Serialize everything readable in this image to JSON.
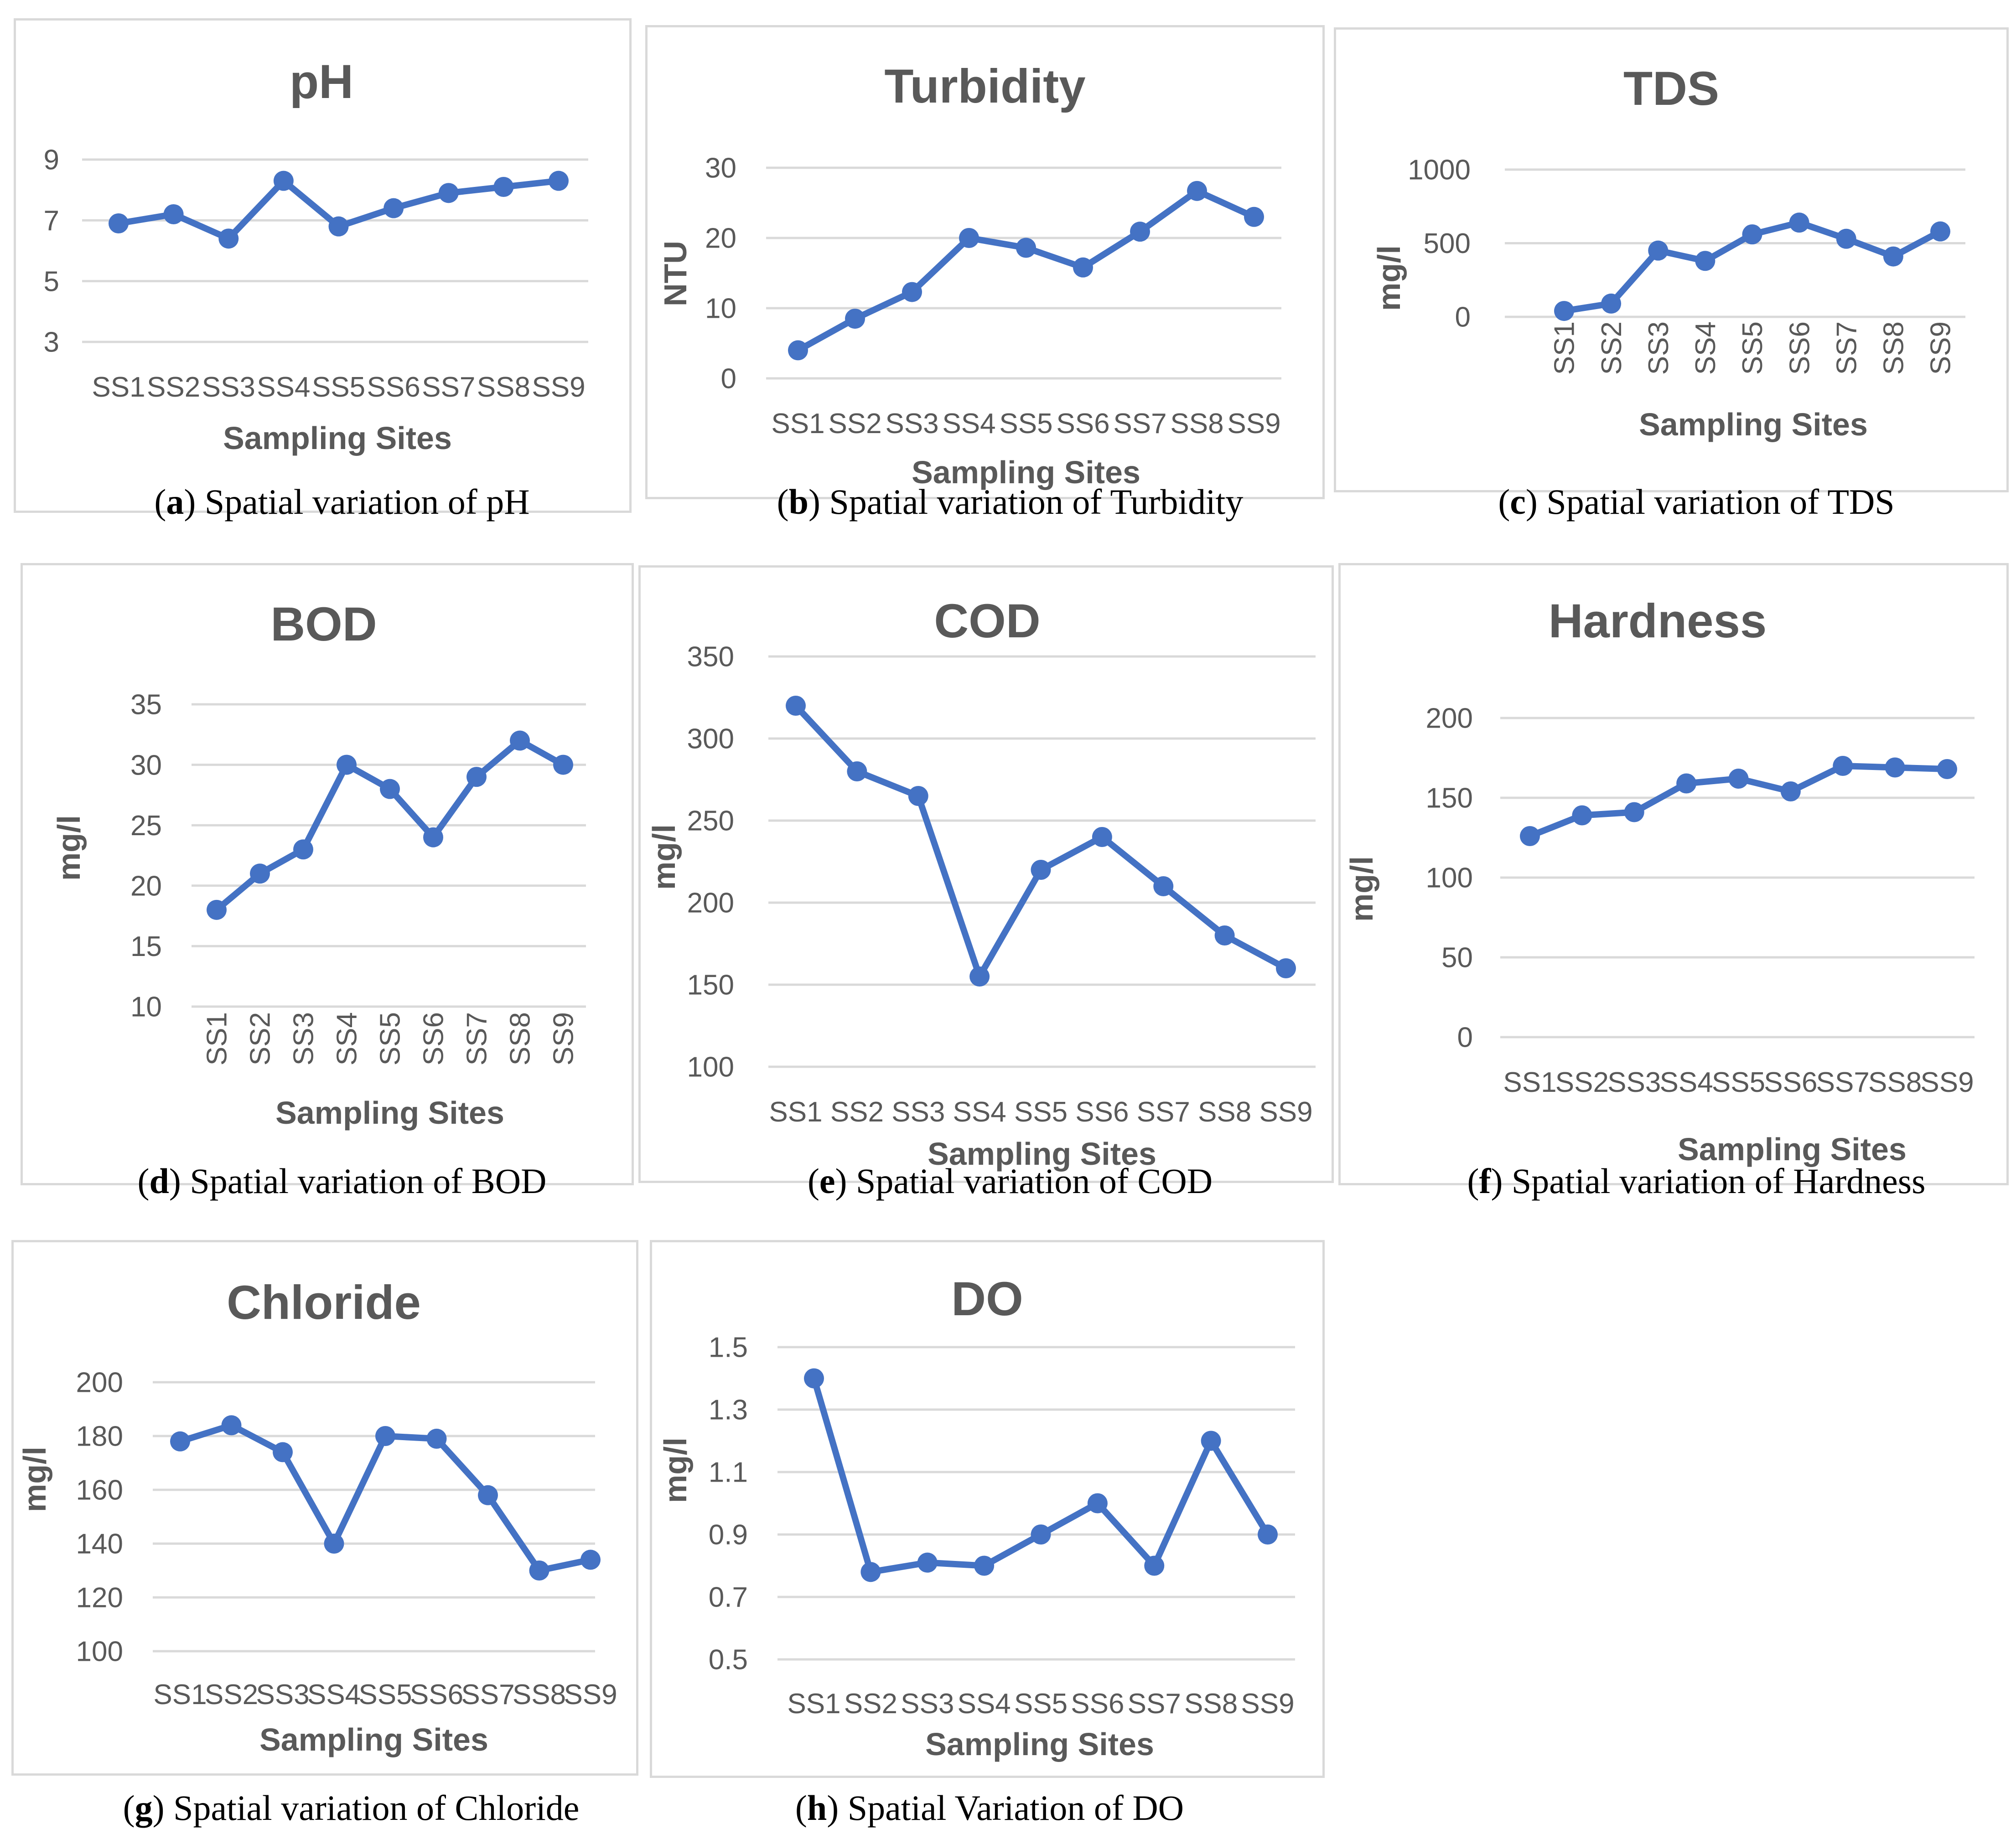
{
  "chart_data": [
    {
      "id": "a",
      "type": "line",
      "title": "pH",
      "categories": [
        "SS1",
        "SS2",
        "SS3",
        "SS4",
        "SS5",
        "SS6",
        "SS7",
        "SS8",
        "SS9"
      ],
      "values": [
        6.9,
        7.2,
        6.4,
        8.3,
        6.8,
        7.4,
        7.9,
        8.1,
        8.3
      ],
      "yticks": [
        3,
        5,
        7,
        9
      ],
      "ylim": [
        3,
        9
      ],
      "xlabel": "Sampling Sites",
      "ylabel": "",
      "caption_letter": "a",
      "caption_text": " Spatial variation of pH"
    },
    {
      "id": "b",
      "type": "line",
      "title": "Turbidity",
      "categories": [
        "SS1",
        "SS2",
        "SS3",
        "SS4",
        "SS5",
        "SS6",
        "SS7",
        "SS8",
        "SS9"
      ],
      "values": [
        4,
        8.5,
        12.3,
        20,
        18.6,
        15.8,
        20.9,
        26.7,
        23
      ],
      "yticks": [
        0,
        10,
        20,
        30
      ],
      "ylim": [
        0,
        30
      ],
      "xlabel": "Sampling Sites",
      "ylabel": "NTU",
      "caption_letter": "b",
      "caption_text": " Spatial variation of Turbidity"
    },
    {
      "id": "c",
      "type": "line",
      "title": "TDS",
      "categories": [
        "SS1",
        "SS2",
        "SS3",
        "SS4",
        "SS5",
        "SS6",
        "SS7",
        "SS8",
        "SS9"
      ],
      "values": [
        40,
        90,
        450,
        380,
        560,
        640,
        530,
        410,
        580
      ],
      "yticks": [
        0,
        500,
        1000
      ],
      "ylim": [
        0,
        1000
      ],
      "xlabel": "Sampling Sites",
      "ylabel": "mg/l",
      "caption_letter": "c",
      "caption_text": " Spatial variation of TDS"
    },
    {
      "id": "d",
      "type": "line",
      "title": "BOD",
      "categories": [
        "SS1",
        "SS2",
        "SS3",
        "SS4",
        "SS5",
        "SS6",
        "SS7",
        "SS8",
        "SS9"
      ],
      "values": [
        18,
        21,
        23,
        30,
        28,
        24,
        29,
        32,
        30
      ],
      "yticks": [
        10,
        15,
        20,
        25,
        30,
        35
      ],
      "ylim": [
        10,
        35
      ],
      "xlabel": "Sampling Sites",
      "ylabel": "mg/l",
      "caption_letter": "d",
      "caption_text": " Spatial variation of BOD"
    },
    {
      "id": "e",
      "type": "line",
      "title": "COD",
      "categories": [
        "SS1",
        "SS2",
        "SS3",
        "SS4",
        "SS5",
        "SS6",
        "SS7",
        "SS8",
        "SS9"
      ],
      "values": [
        320,
        280,
        265,
        155,
        220,
        240,
        210,
        180,
        160
      ],
      "yticks": [
        100,
        150,
        200,
        250,
        300,
        350
      ],
      "ylim": [
        100,
        350
      ],
      "xlabel": "Sampling Sites",
      "ylabel": "mg/l",
      "caption_letter": "e",
      "caption_text": " Spatial variation of COD"
    },
    {
      "id": "f",
      "type": "line",
      "title": "Hardness",
      "categories": [
        "SS1",
        "SS2",
        "SS3",
        "SS4",
        "SS5",
        "SS6",
        "SS7",
        "SS8",
        "SS9"
      ],
      "values": [
        126,
        139,
        141,
        159,
        162,
        154,
        170,
        169,
        168
      ],
      "yticks": [
        0,
        50,
        100,
        150,
        200
      ],
      "ylim": [
        0,
        200
      ],
      "xlabel": "Sampling Sites",
      "ylabel": "mg/l",
      "caption_letter": "f",
      "caption_text": " Spatial variation of Hardness"
    },
    {
      "id": "g",
      "type": "line",
      "title": "Chloride",
      "categories": [
        "SS1",
        "SS2",
        "SS3",
        "SS4",
        "SS5",
        "SS6",
        "SS7",
        "SS8",
        "SS9"
      ],
      "values": [
        178,
        184,
        174,
        140,
        180,
        179,
        158,
        130,
        134
      ],
      "yticks": [
        100,
        120,
        140,
        160,
        180,
        200
      ],
      "ylim": [
        100,
        200
      ],
      "xlabel": "Sampling Sites",
      "ylabel": "mg/l",
      "caption_letter": "g",
      "caption_text": " Spatial variation of Chloride"
    },
    {
      "id": "h",
      "type": "line",
      "title": "DO",
      "categories": [
        "SS1",
        "SS2",
        "SS3",
        "SS4",
        "SS5",
        "SS6",
        "SS7",
        "SS8",
        "SS9"
      ],
      "values": [
        1.4,
        0.78,
        0.81,
        0.8,
        0.9,
        1.0,
        0.8,
        1.2,
        0.9
      ],
      "yticks": [
        0.5,
        0.7,
        0.9,
        1.1,
        1.3,
        1.5
      ],
      "ylim": [
        0.5,
        1.5
      ],
      "xlabel": "Sampling Sites",
      "ylabel": "mg/l",
      "caption_letter": "h",
      "caption_text": " Spatial Variation of DO"
    }
  ],
  "colors": {
    "series": "#4472c4",
    "grid": "#d9d9d9",
    "text": "#595959",
    "border": "#d9d9d9"
  }
}
